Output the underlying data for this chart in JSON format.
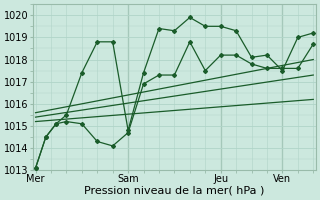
{
  "xlabel": "Pression niveau de la mer( hPa )",
  "bg_color": "#cce8de",
  "grid_color": "#b0d4c8",
  "line_color": "#1a5c2a",
  "vline_color": "#99bbaa",
  "ylim": [
    1013,
    1020.5
  ],
  "xlim": [
    -1,
    109
  ],
  "xtick_vals": [
    0,
    36,
    72,
    96
  ],
  "xtick_labels": [
    "Mer",
    "Sam",
    "Jeu",
    "Ven"
  ],
  "ytick_vals": [
    1013,
    1014,
    1015,
    1016,
    1017,
    1018,
    1019,
    1020
  ],
  "vline_positions": [
    36,
    72,
    96
  ],
  "series1_x": [
    0,
    4,
    8,
    12,
    18,
    24,
    30,
    36,
    42,
    48,
    54,
    60,
    66,
    72,
    78,
    84,
    90,
    96,
    102,
    108
  ],
  "series1_y": [
    1013.1,
    1014.5,
    1015.1,
    1015.2,
    1015.1,
    1014.3,
    1014.1,
    1014.7,
    1016.9,
    1017.3,
    1017.3,
    1018.8,
    1017.5,
    1018.2,
    1018.2,
    1017.8,
    1017.6,
    1017.6,
    1017.6,
    1018.7
  ],
  "series2_x": [
    0,
    4,
    8,
    12,
    18,
    24,
    30,
    36,
    42,
    48,
    54,
    60,
    66,
    72,
    78,
    84,
    90,
    96,
    102,
    108
  ],
  "series2_y": [
    1013.1,
    1014.5,
    1015.1,
    1015.5,
    1017.4,
    1018.8,
    1018.8,
    1014.8,
    1017.4,
    1019.4,
    1019.3,
    1019.9,
    1019.5,
    1019.5,
    1019.3,
    1018.1,
    1018.2,
    1017.5,
    1019.0,
    1019.2
  ],
  "trend1_x": [
    0,
    108
  ],
  "trend1_y": [
    1015.2,
    1016.2
  ],
  "trend2_x": [
    0,
    108
  ],
  "trend2_y": [
    1015.4,
    1017.3
  ],
  "trend3_x": [
    0,
    108
  ],
  "trend3_y": [
    1015.6,
    1018.0
  ],
  "xlabel_fontsize": 8,
  "tick_fontsize": 7
}
